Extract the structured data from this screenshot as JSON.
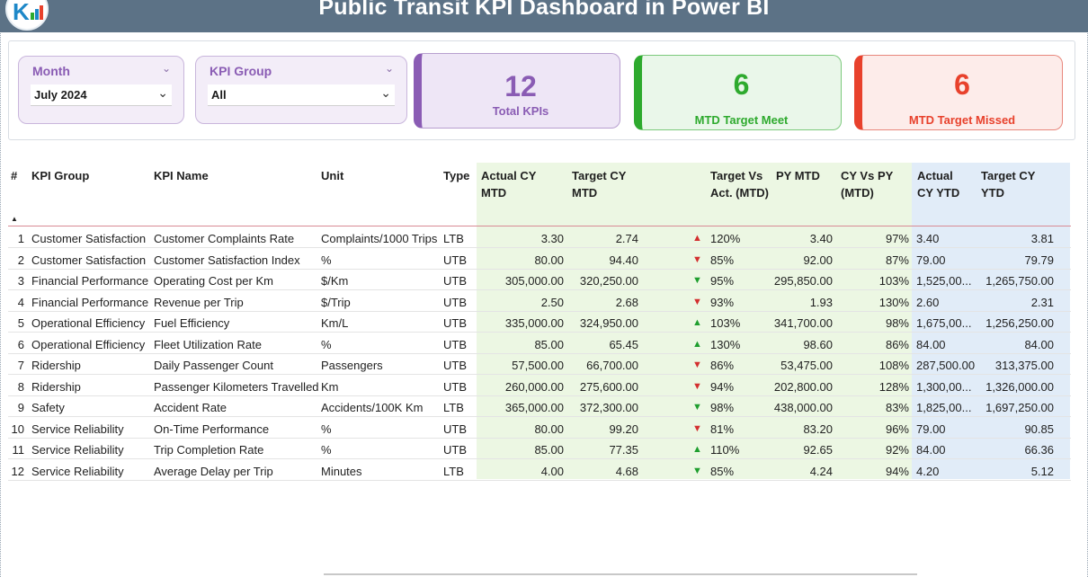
{
  "header": {
    "title": "Public Transit KPI Dashboard in Power BI"
  },
  "slicers": {
    "month": {
      "label": "Month",
      "value": "July 2024"
    },
    "kpi_group": {
      "label": "KPI Group",
      "value": "All"
    }
  },
  "cards": {
    "total": {
      "value": "12",
      "label": "Total KPIs"
    },
    "meet": {
      "value": "6",
      "label": "MTD Target Meet"
    },
    "missed": {
      "value": "6",
      "label": "MTD Target Missed"
    }
  },
  "table": {
    "headers": {
      "num": "#",
      "kpi_group": "KPI Group",
      "kpi_name": "KPI Name",
      "unit": "Unit",
      "type": "Type",
      "actual_cy_mtd": "Actual CY MTD",
      "target_cy_mtd": "Target CY MTD",
      "target_vs_act": "Target Vs Act. (MTD)",
      "py_mtd": "PY MTD",
      "cy_vs_py": "CY Vs PY (MTD)",
      "actual_cy_ytd": "Actual CY YTD",
      "target_cy_ytd": "Target CY YTD"
    },
    "rows": [
      {
        "num": "1",
        "group": "Customer Satisfaction",
        "name": "Customer Complaints Rate",
        "unit": "Complaints/1000 Trips",
        "type": "LTB",
        "actual_mtd": "3.30",
        "target_mtd": "2.74",
        "arrow": "up-red",
        "tva": "120%",
        "py_mtd": "3.40",
        "cvp": "97%",
        "actual_ytd": "3.40",
        "target_ytd": "3.81"
      },
      {
        "num": "2",
        "group": "Customer Satisfaction",
        "name": "Customer Satisfaction Index",
        "unit": "%",
        "type": "UTB",
        "actual_mtd": "80.00",
        "target_mtd": "94.40",
        "arrow": "down-red",
        "tva": "85%",
        "py_mtd": "92.00",
        "cvp": "87%",
        "actual_ytd": "79.00",
        "target_ytd": "79.79"
      },
      {
        "num": "3",
        "group": "Financial Performance",
        "name": "Operating Cost per Km",
        "unit": "$/Km",
        "type": "UTB",
        "actual_mtd": "305,000.00",
        "target_mtd": "320,250.00",
        "arrow": "down-green",
        "tva": "95%",
        "py_mtd": "295,850.00",
        "cvp": "103%",
        "actual_ytd": "1,525,00...",
        "target_ytd": "1,265,750.00"
      },
      {
        "num": "4",
        "group": "Financial Performance",
        "name": "Revenue per Trip",
        "unit": "$/Trip",
        "type": "UTB",
        "actual_mtd": "2.50",
        "target_mtd": "2.68",
        "arrow": "down-red",
        "tva": "93%",
        "py_mtd": "1.93",
        "cvp": "130%",
        "actual_ytd": "2.60",
        "target_ytd": "2.31"
      },
      {
        "num": "5",
        "group": "Operational Efficiency",
        "name": "Fuel Efficiency",
        "unit": "Km/L",
        "type": "UTB",
        "actual_mtd": "335,000.00",
        "target_mtd": "324,950.00",
        "arrow": "up-green",
        "tva": "103%",
        "py_mtd": "341,700.00",
        "cvp": "98%",
        "actual_ytd": "1,675,00...",
        "target_ytd": "1,256,250.00"
      },
      {
        "num": "6",
        "group": "Operational Efficiency",
        "name": "Fleet Utilization Rate",
        "unit": "%",
        "type": "UTB",
        "actual_mtd": "85.00",
        "target_mtd": "65.45",
        "arrow": "up-green",
        "tva": "130%",
        "py_mtd": "98.60",
        "cvp": "86%",
        "actual_ytd": "84.00",
        "target_ytd": "84.00"
      },
      {
        "num": "7",
        "group": "Ridership",
        "name": "Daily Passenger Count",
        "unit": "Passengers",
        "type": "UTB",
        "actual_mtd": "57,500.00",
        "target_mtd": "66,700.00",
        "arrow": "down-red",
        "tva": "86%",
        "py_mtd": "53,475.00",
        "cvp": "108%",
        "actual_ytd": "287,500.00",
        "target_ytd": "313,375.00"
      },
      {
        "num": "8",
        "group": "Ridership",
        "name": "Passenger Kilometers Travelled",
        "unit": "Km",
        "type": "UTB",
        "actual_mtd": "260,000.00",
        "target_mtd": "275,600.00",
        "arrow": "down-red",
        "tva": "94%",
        "py_mtd": "202,800.00",
        "cvp": "128%",
        "actual_ytd": "1,300,00...",
        "target_ytd": "1,326,000.00"
      },
      {
        "num": "9",
        "group": "Safety",
        "name": "Accident Rate",
        "unit": "Accidents/100K Km",
        "type": "LTB",
        "actual_mtd": "365,000.00",
        "target_mtd": "372,300.00",
        "arrow": "down-green",
        "tva": "98%",
        "py_mtd": "438,000.00",
        "cvp": "83%",
        "actual_ytd": "1,825,00...",
        "target_ytd": "1,697,250.00"
      },
      {
        "num": "10",
        "group": "Service Reliability",
        "name": "On-Time Performance",
        "unit": "%",
        "type": "UTB",
        "actual_mtd": "80.00",
        "target_mtd": "99.20",
        "arrow": "down-red",
        "tva": "81%",
        "py_mtd": "83.20",
        "cvp": "96%",
        "actual_ytd": "79.00",
        "target_ytd": "90.85"
      },
      {
        "num": "11",
        "group": "Service Reliability",
        "name": "Trip Completion Rate",
        "unit": "%",
        "type": "UTB",
        "actual_mtd": "85.00",
        "target_mtd": "77.35",
        "arrow": "up-green",
        "tva": "110%",
        "py_mtd": "92.65",
        "cvp": "92%",
        "actual_ytd": "84.00",
        "target_ytd": "66.36"
      },
      {
        "num": "12",
        "group": "Service Reliability",
        "name": "Average Delay per Trip",
        "unit": "Minutes",
        "type": "LTB",
        "actual_mtd": "4.00",
        "target_mtd": "4.68",
        "arrow": "down-green",
        "tva": "85%",
        "py_mtd": "4.24",
        "cvp": "94%",
        "actual_ytd": "4.20",
        "target_ytd": "5.12"
      }
    ]
  },
  "colors": {
    "header_bg": "#5c7286",
    "purple": "#8a5cb4",
    "green": "#2eaa2e",
    "red": "#e8412c",
    "mtd_column_bg": "#ecf7e3",
    "ytd_column_bg": "#e1ecf8"
  },
  "icons": {
    "sort": "triangle-up-icon",
    "chevron": "chevron-down-icon"
  }
}
